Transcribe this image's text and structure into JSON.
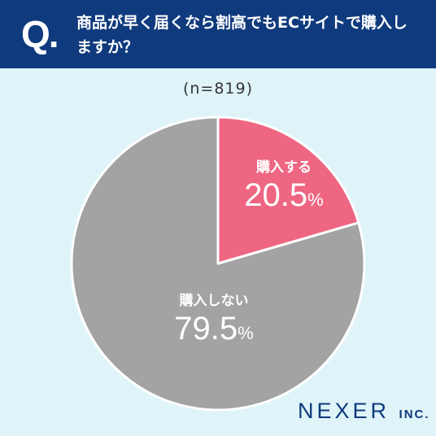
{
  "header": {
    "q_mark": "Q.",
    "question": "商品が早く届くなら割高でもECサイトで購入しますか？"
  },
  "sample_size": "(n=819)",
  "chart_data": {
    "type": "pie",
    "title": "商品が早く届くなら割高でもECサイトで購入しますか？",
    "subtitle": "(n=819)",
    "slices": [
      {
        "label": "購入する",
        "value": 20.5,
        "display": "20.5",
        "unit": "%",
        "color": "#ee6682"
      },
      {
        "label": "購入しない",
        "value": 79.5,
        "display": "79.5",
        "unit": "%",
        "color": "#a3a3a3"
      }
    ],
    "start": "12 o'clock",
    "direction": "clockwise"
  },
  "logo": {
    "name": "NEXER",
    "suffix": "INC."
  }
}
